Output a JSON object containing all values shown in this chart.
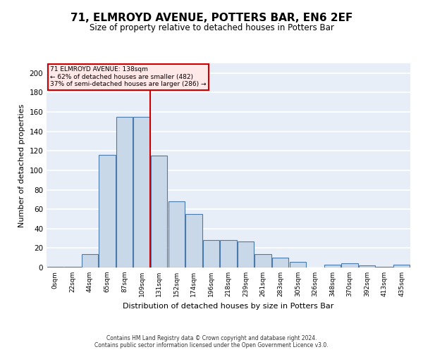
{
  "title": "71, ELMROYD AVENUE, POTTERS BAR, EN6 2EF",
  "subtitle": "Size of property relative to detached houses in Potters Bar",
  "xlabel": "Distribution of detached houses by size in Potters Bar",
  "ylabel": "Number of detached properties",
  "bar_color": "#c8d8e8",
  "bar_edge_color": "#4a7aaa",
  "background_color": "#e8eef8",
  "grid_color": "#ffffff",
  "bin_labels": [
    "0sqm",
    "22sqm",
    "44sqm",
    "65sqm",
    "87sqm",
    "109sqm",
    "131sqm",
    "152sqm",
    "174sqm",
    "196sqm",
    "218sqm",
    "239sqm",
    "261sqm",
    "283sqm",
    "305sqm",
    "326sqm",
    "348sqm",
    "370sqm",
    "392sqm",
    "413sqm",
    "435sqm"
  ],
  "bar_heights": [
    1,
    1,
    14,
    116,
    155,
    155,
    115,
    68,
    55,
    28,
    28,
    27,
    14,
    10,
    6,
    0,
    3,
    4,
    2,
    1,
    3
  ],
  "property_line_x": 5.5,
  "annotation_line1": "71 ELMROYD AVENUE: 138sqm",
  "annotation_line2": "← 62% of detached houses are smaller (482)",
  "annotation_line3": "37% of semi-detached houses are larger (286) →",
  "red_line_color": "#cc0000",
  "annotation_box_facecolor": "#ffe8e8",
  "annotation_box_edgecolor": "#cc0000",
  "yticks": [
    0,
    20,
    40,
    60,
    80,
    100,
    120,
    140,
    160,
    180,
    200
  ],
  "ylim": [
    0,
    210
  ],
  "footer_line1": "Contains HM Land Registry data © Crown copyright and database right 2024.",
  "footer_line2": "Contains public sector information licensed under the Open Government Licence v3.0."
}
